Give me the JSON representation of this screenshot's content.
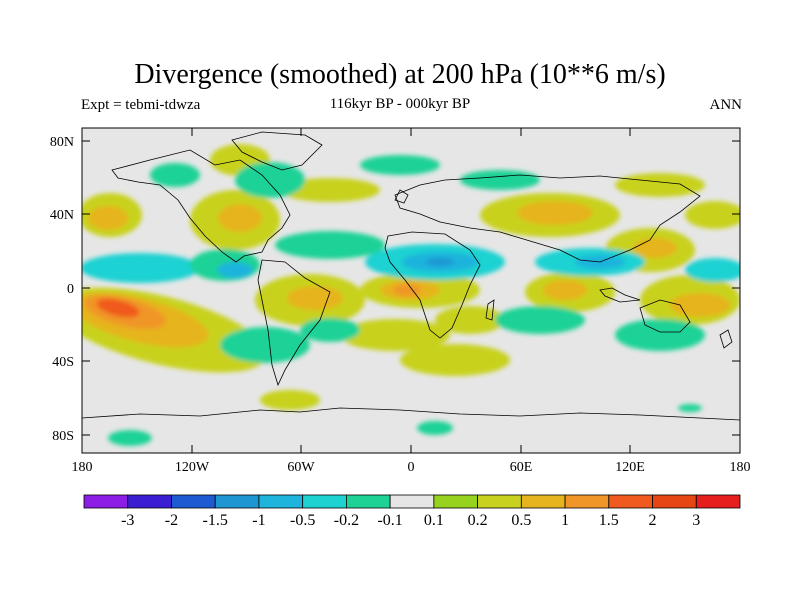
{
  "title": "Divergence (smoothed) at 200 hPa (10**6 m/s)",
  "subtitle_left": "Expt = tebmi-tdwza",
  "subtitle_center": "116kyr BP - 000kyr BP",
  "subtitle_right": "ANN",
  "map": {
    "lat_ticks": [
      "80N",
      "40N",
      "0",
      "40S",
      "80S"
    ],
    "lon_ticks": [
      "180",
      "120W",
      "60W",
      "0",
      "60E",
      "120E",
      "180"
    ]
  },
  "colorbar": {
    "labels": [
      "-3",
      "-2",
      "-1.5",
      "-1",
      "-0.5",
      "-0.2",
      "-0.1",
      "0.1",
      "0.2",
      "0.5",
      "1",
      "1.5",
      "2",
      "3"
    ],
    "colors": [
      "#8c1ee6",
      "#3c1ed2",
      "#1e5ad2",
      "#1e96d2",
      "#1eb4dc",
      "#1ed2d2",
      "#1ed296",
      "#e6e6e6",
      "#96d21e",
      "#c8d21e",
      "#e6b41e",
      "#f09628",
      "#f05a1e",
      "#e64614",
      "#e61e1e"
    ]
  }
}
